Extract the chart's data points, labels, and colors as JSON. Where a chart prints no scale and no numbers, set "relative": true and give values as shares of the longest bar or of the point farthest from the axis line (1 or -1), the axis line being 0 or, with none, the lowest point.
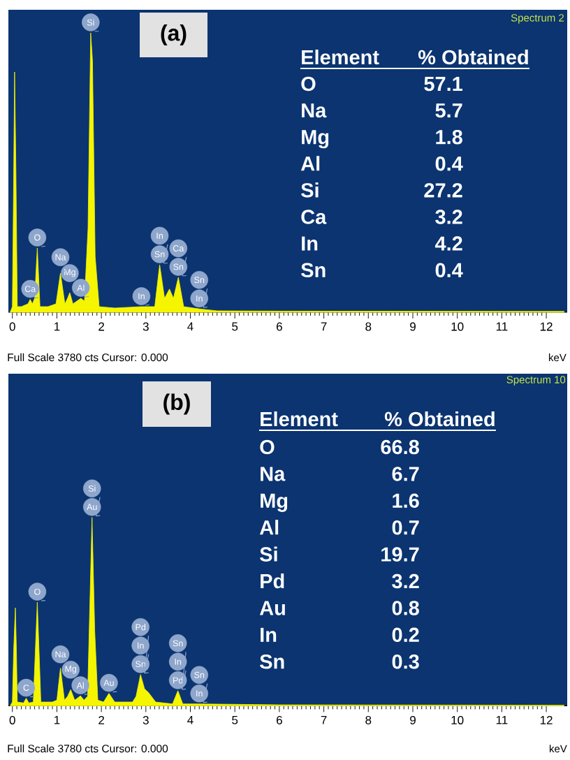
{
  "chart_data": [
    {
      "type": "area",
      "relative": true,
      "title": "(a)",
      "subtitle": "Spectrum 2",
      "xlabel": "keV",
      "x": [
        -0.05,
        0.0,
        0.03,
        0.05,
        0.08,
        0.11,
        0.2,
        0.35,
        0.4,
        0.45,
        0.5,
        0.56,
        0.62,
        0.8,
        0.98,
        1.08,
        1.18,
        1.24,
        1.29,
        1.36,
        1.45,
        1.54,
        1.62,
        1.7,
        1.76,
        1.8,
        1.86,
        1.95,
        2.3,
        2.9,
        3.2,
        3.31,
        3.42,
        3.53,
        3.62,
        3.73,
        3.85,
        4.2,
        4.6,
        6,
        12.4
      ],
      "series": [
        {
          "color": "#f5f500",
          "values": [
            0,
            0.02,
            0.5,
            0.86,
            0.5,
            0.02,
            0.02,
            0.03,
            0.046,
            0.03,
            0.05,
            0.23,
            0.02,
            0.02,
            0.03,
            0.14,
            0.03,
            0.05,
            0.07,
            0.03,
            0.04,
            0.05,
            0.04,
            0.3,
            1.0,
            0.9,
            0.2,
            0.02,
            0.015,
            0.02,
            0.02,
            0.17,
            0.05,
            0.083,
            0.05,
            0.125,
            0.02,
            0.012,
            0.005,
            0.004,
            0.003
          ]
        }
      ],
      "xlim": [
        -0.09,
        12.47
      ],
      "xticks": [
        0,
        1,
        2,
        3,
        4,
        5,
        6,
        7,
        8,
        9,
        10,
        11,
        12
      ],
      "annotations": [
        "Full Scale 3780 cts Cursor: 0.000",
        "Element",
        "% Obtained",
        "O",
        "57.1",
        "Na",
        "5.7",
        "Mg",
        "1.8",
        "Al",
        "0.4",
        "Si",
        "27.2",
        "Ca",
        "3.2",
        "In",
        "4.2",
        "Sn",
        "0.4",
        {
          "text": "Si",
          "x": 1.76,
          "y": 1.0
        },
        {
          "text": "O",
          "x": 0.56,
          "y": 0.23
        },
        {
          "text": "Ca",
          "x": 0.4,
          "y": 0.046
        },
        {
          "text": "Al",
          "x": 1.54,
          "y": 0.05
        },
        {
          "text": "Mg",
          "x": 1.29,
          "y": 0.07
        },
        {
          "text": "Na",
          "x": 1.08,
          "y": 0.14
        },
        {
          "text": "In",
          "x": 2.9,
          "y": 0.02
        },
        {
          "text": "Sn",
          "x": 3.31,
          "y": 0.17
        },
        {
          "text": "In",
          "x": 3.31,
          "y": 0.17
        },
        {
          "text": "Sn",
          "x": 3.73,
          "y": 0.125
        },
        {
          "text": "Ca",
          "x": 3.73,
          "y": 0.125
        },
        {
          "text": "In",
          "x": 4.2,
          "y": 0.012
        },
        {
          "text": "Sn",
          "x": 4.2,
          "y": 0.012
        }
      ]
    },
    {
      "type": "area",
      "relative": true,
      "title": "(b)",
      "subtitle": "Spectrum 10",
      "xlabel": "keV",
      "x": [
        -0.05,
        0.0,
        0.03,
        0.067,
        0.09,
        0.11,
        0.25,
        0.31,
        0.37,
        0.47,
        0.56,
        0.64,
        0.9,
        1.0,
        1.08,
        1.17,
        1.24,
        1.31,
        1.4,
        1.46,
        1.53,
        1.61,
        1.69,
        1.79,
        1.85,
        1.92,
        2.05,
        2.17,
        2.3,
        2.7,
        2.78,
        2.88,
        2.97,
        3.06,
        3.22,
        3.6,
        3.72,
        3.83,
        4.2,
        6,
        12.4
      ],
      "series": [
        {
          "color": "#f5f500",
          "values": [
            0,
            0.02,
            0.3,
            0.52,
            0.3,
            0.02,
            0.015,
            0.04,
            0.015,
            0.02,
            0.55,
            0.02,
            0.02,
            0.03,
            0.2,
            0.03,
            0.05,
            0.086,
            0.03,
            0.04,
            0.053,
            0.03,
            0.05,
            1.0,
            0.4,
            0.03,
            0.02,
            0.066,
            0.02,
            0.02,
            0.05,
            0.166,
            0.09,
            0.07,
            0.02,
            0.01,
            0.08,
            0.01,
            0.01,
            0.005,
            0.003
          ]
        }
      ],
      "xlim": [
        -0.09,
        12.47
      ],
      "xticks": [
        0,
        1,
        2,
        3,
        4,
        5,
        6,
        7,
        8,
        9,
        10,
        11,
        12
      ],
      "annotations": [
        "Full Scale 3780 cts Cursor: 0.000",
        "Element",
        "% Obtained",
        "O",
        "66.8",
        "Na",
        "6.7",
        "Mg",
        "1.6",
        "Al",
        "0.7",
        "Si",
        "19.7",
        "Pd",
        "3.2",
        "Au",
        "0.8",
        "In",
        "0.2",
        "Sn",
        "0.3",
        {
          "text": "Au",
          "x": 1.79,
          "y": 1.0
        },
        {
          "text": "Si",
          "x": 1.79,
          "y": 1.0
        },
        {
          "text": "O",
          "x": 0.56,
          "y": 0.55
        },
        {
          "text": "C",
          "x": 0.31,
          "y": 0.04
        },
        {
          "text": "Al",
          "x": 1.53,
          "y": 0.053
        },
        {
          "text": "Mg",
          "x": 1.31,
          "y": 0.086
        },
        {
          "text": "Na",
          "x": 1.08,
          "y": 0.2
        },
        {
          "text": "Au",
          "x": 2.17,
          "y": 0.066
        },
        {
          "text": "Sn",
          "x": 2.88,
          "y": 0.166
        },
        {
          "text": "In",
          "x": 2.88,
          "y": 0.166
        },
        {
          "text": "Pd",
          "x": 2.88,
          "y": 0.166
        },
        {
          "text": "Pd",
          "x": 3.72,
          "y": 0.08
        },
        {
          "text": "In",
          "x": 3.72,
          "y": 0.08
        },
        {
          "text": "Sn",
          "x": 3.72,
          "y": 0.08
        },
        {
          "text": "In",
          "x": 4.2,
          "y": 0.01
        },
        {
          "text": "Sn",
          "x": 4.2,
          "y": 0.01
        }
      ]
    }
  ]
}
